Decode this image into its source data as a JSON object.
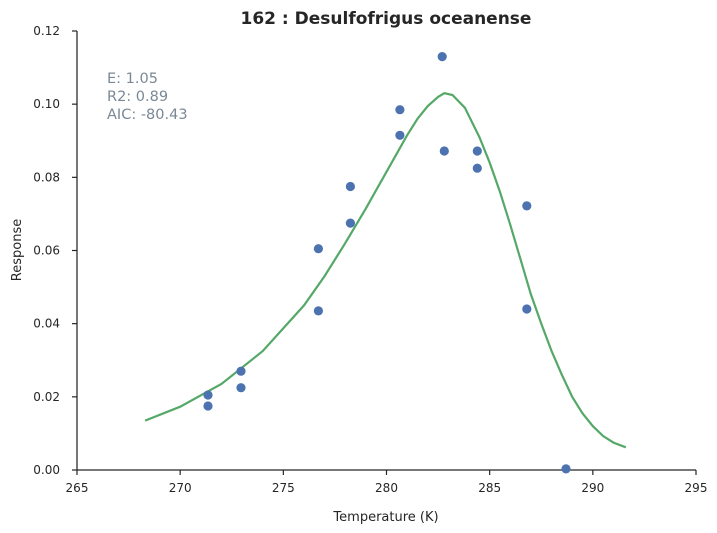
{
  "chart_data": {
    "type": "scatter",
    "title": "162 : Desulfofrigus oceanense",
    "xlabel": "Temperature (K)",
    "ylabel": "Response",
    "xlim": [
      265,
      295
    ],
    "ylim": [
      0,
      0.12
    ],
    "xticks": [
      "265",
      "270",
      "275",
      "280",
      "285",
      "290",
      "295"
    ],
    "yticks": [
      "0.00",
      "0.02",
      "0.04",
      "0.06",
      "0.08",
      "0.10",
      "0.12"
    ],
    "annotations": [
      "E:  1.05",
      "R2:  0.89",
      "AIC: -80.43"
    ],
    "colors": {
      "points": "#4c72b0",
      "fit": "#55a868",
      "stats_text": "#7a8896",
      "axis": "#262626"
    },
    "points": {
      "x": [
        271.35,
        271.35,
        272.95,
        272.95,
        276.7,
        276.7,
        278.25,
        278.25,
        280.65,
        280.65,
        282.7,
        282.8,
        284.4,
        284.4,
        286.8,
        286.8,
        288.7
      ],
      "y": [
        0.0205,
        0.0175,
        0.027,
        0.0225,
        0.0605,
        0.0435,
        0.0775,
        0.0675,
        0.0985,
        0.0915,
        0.113,
        0.0872,
        0.0872,
        0.0825,
        0.0722,
        0.044,
        0.0003
      ]
    },
    "fit": {
      "x": [
        268.3,
        270.0,
        272.0,
        274.0,
        276.0,
        277.0,
        278.0,
        279.0,
        280.0,
        281.0,
        281.5,
        282.0,
        282.5,
        282.8,
        283.2,
        283.8,
        284.5,
        285.0,
        285.5,
        286.0,
        286.5,
        287.0,
        287.5,
        288.0,
        288.5,
        289.0,
        289.5,
        290.0,
        290.5,
        291.0,
        291.6
      ],
      "y": [
        0.0135,
        0.0173,
        0.0235,
        0.0325,
        0.045,
        0.053,
        0.062,
        0.0715,
        0.0815,
        0.0915,
        0.096,
        0.0995,
        0.102,
        0.103,
        0.1025,
        0.099,
        0.091,
        0.084,
        0.076,
        0.067,
        0.0575,
        0.048,
        0.04,
        0.0325,
        0.026,
        0.02,
        0.0155,
        0.012,
        0.0093,
        0.0075,
        0.0062
      ]
    }
  }
}
